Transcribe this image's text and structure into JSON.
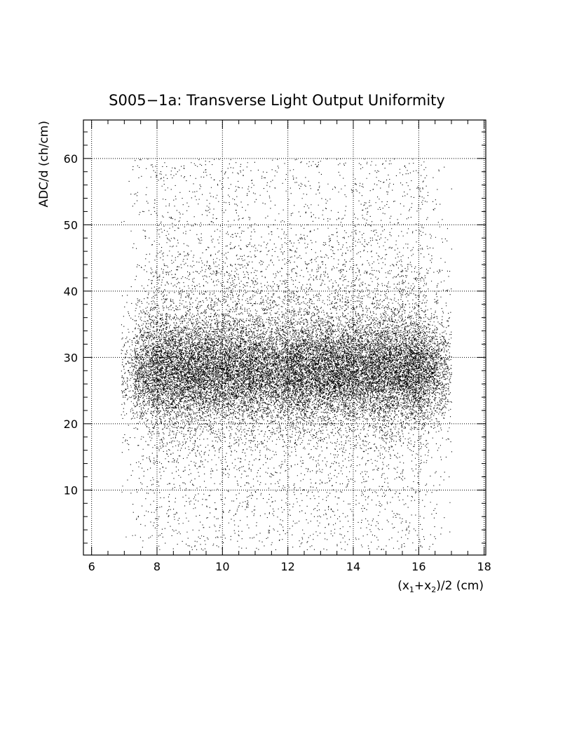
{
  "chart_data": {
    "type": "scatter",
    "title": "S005−1a: Transverse Light Output Uniformity",
    "xlabel_parts": {
      "open": "(x",
      "sub1": "1",
      "plus": "+x",
      "sub2": "2",
      "close": ")/2 (cm)"
    },
    "ylabel": "ADC/d (ch/cm)",
    "xlim": [
      5.75,
      18.05
    ],
    "ylim": [
      0.2,
      65.8
    ],
    "xticks": [
      6,
      8,
      10,
      12,
      14,
      16,
      18
    ],
    "yticks": [
      10,
      20,
      30,
      40,
      50,
      60
    ],
    "grid": true,
    "legend": "none",
    "marker_color": "#000000",
    "distribution": {
      "x_range": [
        6.9,
        17.0
      ],
      "y_range": [
        1,
        60
      ],
      "dense_core_y_range": [
        22,
        35
      ],
      "dense_core_x_ranges": [
        [
          8.3,
          11.0
        ],
        [
          11.8,
          15.5
        ]
      ],
      "peak_y": 28
    }
  }
}
